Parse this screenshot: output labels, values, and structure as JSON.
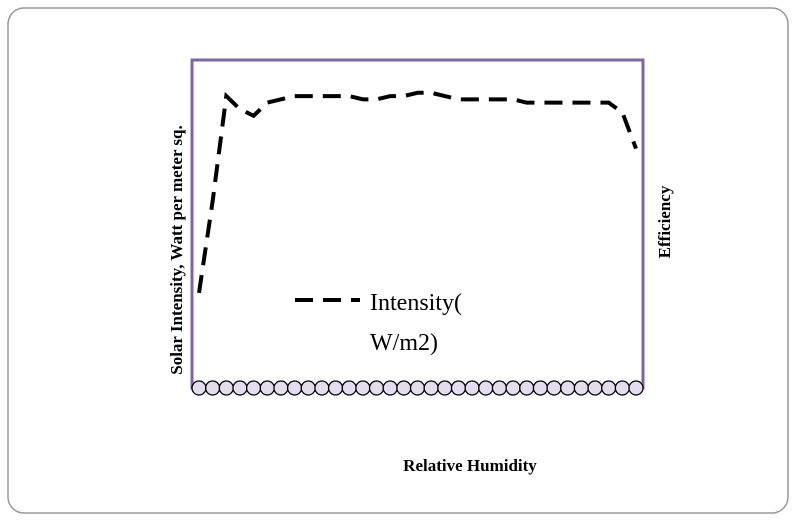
{
  "chart_data": {
    "type": "line",
    "xlabel": "Relative Humidity",
    "ylabel": "Solar Intensity, Watt per meter sq.",
    "y2label": "Efficiency",
    "categories": [
      null,
      null,
      null,
      null,
      null,
      null,
      null,
      null,
      null,
      null,
      null,
      null,
      null,
      null,
      null,
      null,
      null,
      null,
      null,
      null,
      null,
      null,
      null,
      null,
      null,
      null,
      null,
      null,
      null,
      null,
      null,
      null,
      null
    ],
    "ylim": [
      0,
      100
    ],
    "series": [
      {
        "name": "Intensity( W/m2)",
        "color": "#000000",
        "values": [
          29,
          57,
          89,
          85,
          83,
          87,
          88,
          89,
          89,
          89,
          89,
          89,
          88,
          88,
          89,
          89,
          90,
          90,
          89,
          88,
          88,
          88,
          88,
          88,
          87,
          87,
          87,
          87,
          87,
          87,
          87,
          84,
          73
        ]
      },
      {
        "color": "#000000",
        "values": [
          0,
          0,
          0,
          0,
          0,
          0,
          0,
          0,
          0,
          0,
          0,
          0,
          0,
          0,
          0,
          0,
          0,
          0,
          0,
          0,
          0,
          0,
          0,
          0,
          0,
          0,
          0,
          0,
          0,
          0,
          0,
          0,
          0
        ]
      }
    ]
  }
}
